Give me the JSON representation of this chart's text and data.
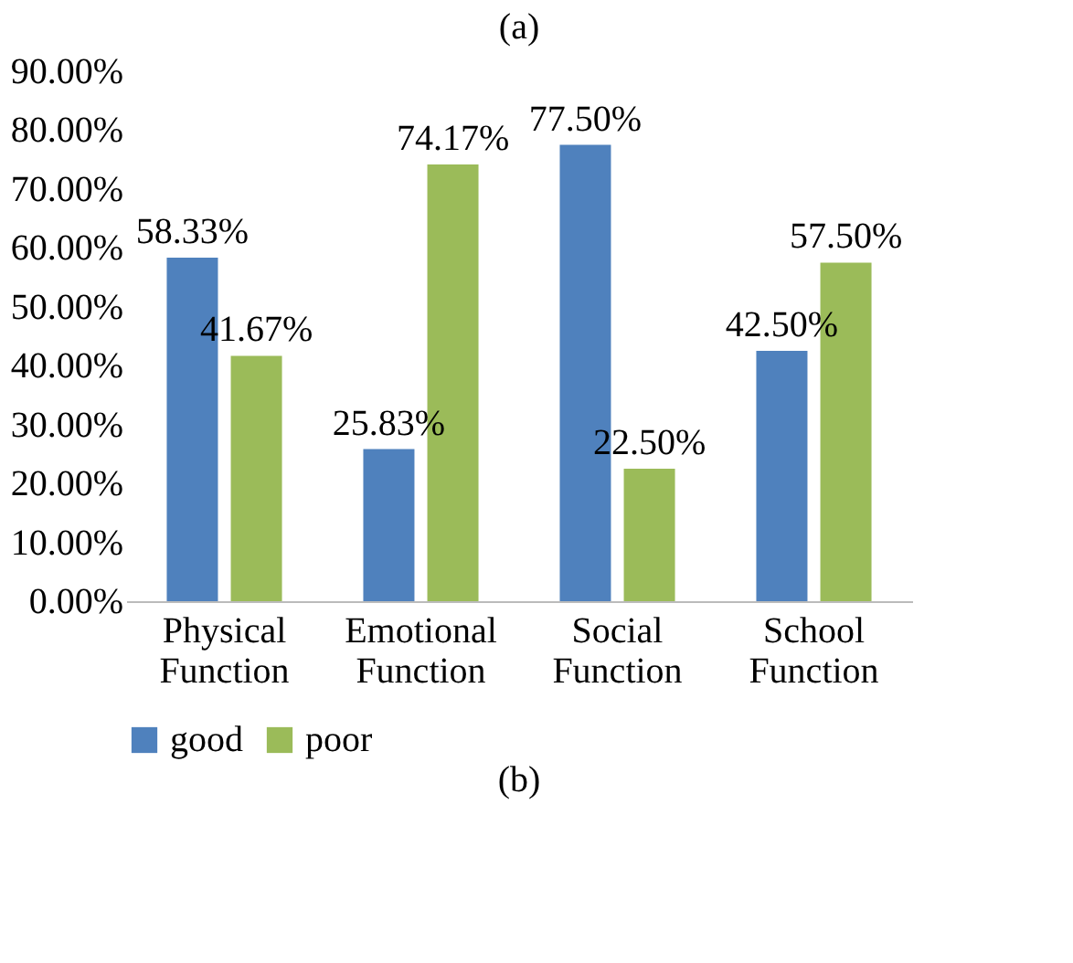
{
  "chart_data": {
    "type": "bar",
    "title": "(a)",
    "categories": [
      "Physical Function",
      "Emotional Function",
      "Social Function",
      "School Function"
    ],
    "series": [
      {
        "name": "good",
        "color": "#4f81bd",
        "values": [
          58.33,
          25.83,
          77.5,
          42.5
        ],
        "value_labels": [
          "58.33%",
          "25.83%",
          "77.50%",
          "42.50%"
        ]
      },
      {
        "name": "poor",
        "color": "#9bbb59",
        "values": [
          41.67,
          74.17,
          22.5,
          57.5
        ],
        "value_labels": [
          "41.67%",
          "74.17%",
          "22.50%",
          "57.50%"
        ]
      }
    ],
    "ylim": [
      0,
      90
    ],
    "yticks": [
      {
        "value": 0,
        "label": "0.00%"
      },
      {
        "value": 10,
        "label": "10.00%"
      },
      {
        "value": 20,
        "label": "20.00%"
      },
      {
        "value": 30,
        "label": "30.00%"
      },
      {
        "value": 40,
        "label": "40.00%"
      },
      {
        "value": 50,
        "label": "50.00%"
      },
      {
        "value": 60,
        "label": "60.00%"
      },
      {
        "value": 70,
        "label": "70.00%"
      },
      {
        "value": 80,
        "label": "80.00%"
      },
      {
        "value": 90,
        "label": "90.00%"
      }
    ],
    "grid": false,
    "legend": "bottom",
    "annotations": [
      "(b)"
    ]
  }
}
